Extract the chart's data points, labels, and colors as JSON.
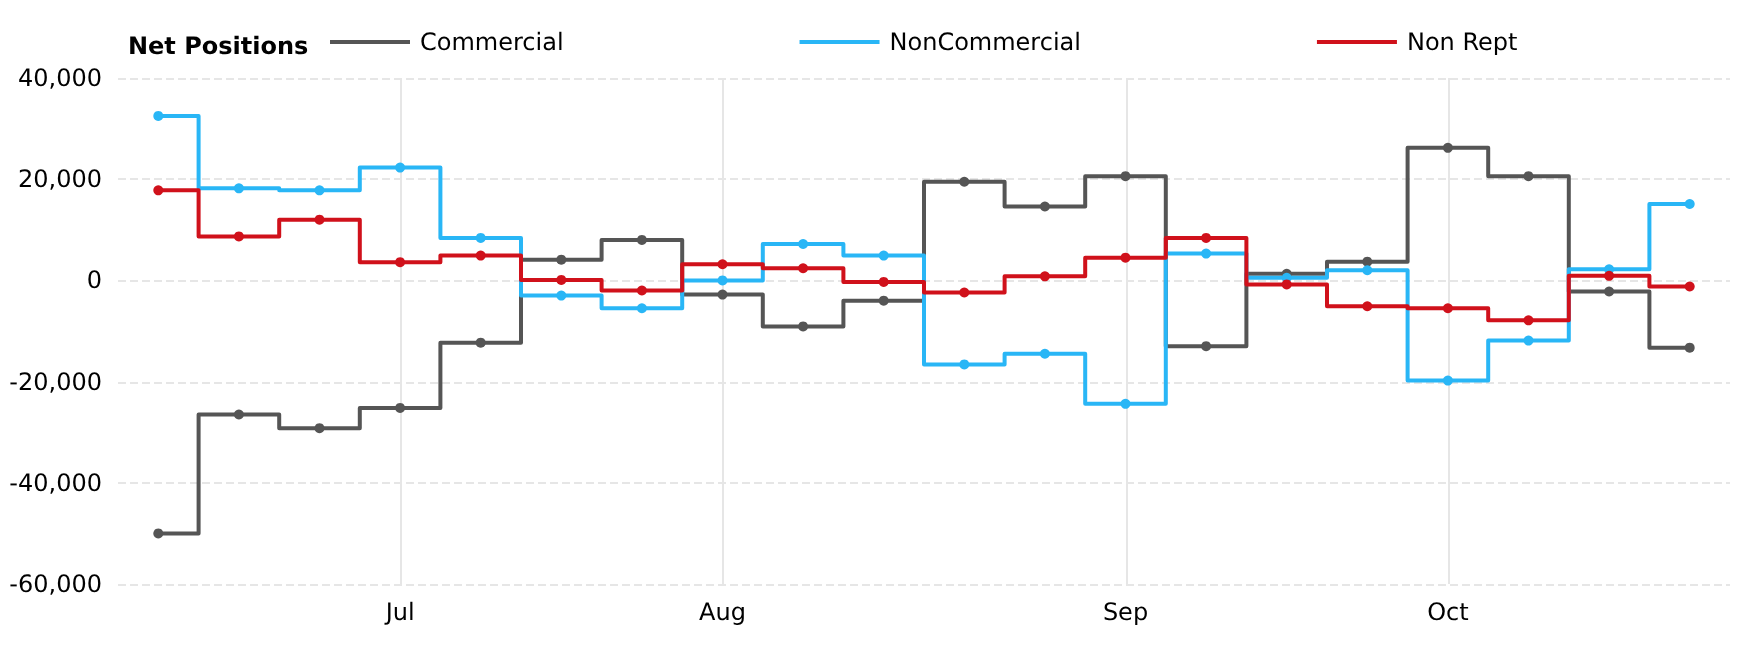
{
  "chart_data": {
    "type": "step",
    "legend_title": "Net Positions",
    "categories": [
      null,
      null,
      null,
      "Jul",
      null,
      null,
      null,
      "Aug",
      null,
      null,
      null,
      null,
      "Sep",
      null,
      null,
      null,
      "Oct",
      null,
      null,
      null
    ],
    "series": [
      {
        "name": "Commercial",
        "color": "#555555",
        "values": [
          -50000,
          -26500,
          -29200,
          -25200,
          -12300,
          4100,
          8000,
          -2800,
          -9100,
          -4000,
          19500,
          14600,
          20600,
          -13000,
          1300,
          3700,
          26200,
          20600,
          -2200,
          -13300
        ]
      },
      {
        "name": "NonCommercial",
        "color": "#29b6f6",
        "values": [
          32500,
          18200,
          17800,
          22300,
          8400,
          -3000,
          -5500,
          0,
          7200,
          4900,
          -16600,
          -14500,
          -24400,
          5300,
          500,
          2000,
          -19800,
          -11900,
          2200,
          15100
        ]
      },
      {
        "name": "Non Rept",
        "color": "#d0111b",
        "values": [
          17800,
          8700,
          12000,
          3600,
          4900,
          100,
          -2000,
          3200,
          2400,
          -300,
          -2400,
          800,
          4500,
          8400,
          -800,
          -5100,
          -5500,
          -7900,
          900,
          -1200
        ]
      }
    ],
    "ylim": [
      -60000,
      40000
    ],
    "yticks": [
      {
        "value": -60000,
        "label": "-60,000"
      },
      {
        "value": -40000,
        "label": "-40,000"
      },
      {
        "value": -20000,
        "label": "-20,000"
      },
      0,
      {
        "value": 20000,
        "label": "20,000"
      },
      {
        "value": 40000,
        "label": "40,000"
      }
    ],
    "grid": true,
    "legend": "top",
    "marker": "circle",
    "line_style": "solid"
  }
}
